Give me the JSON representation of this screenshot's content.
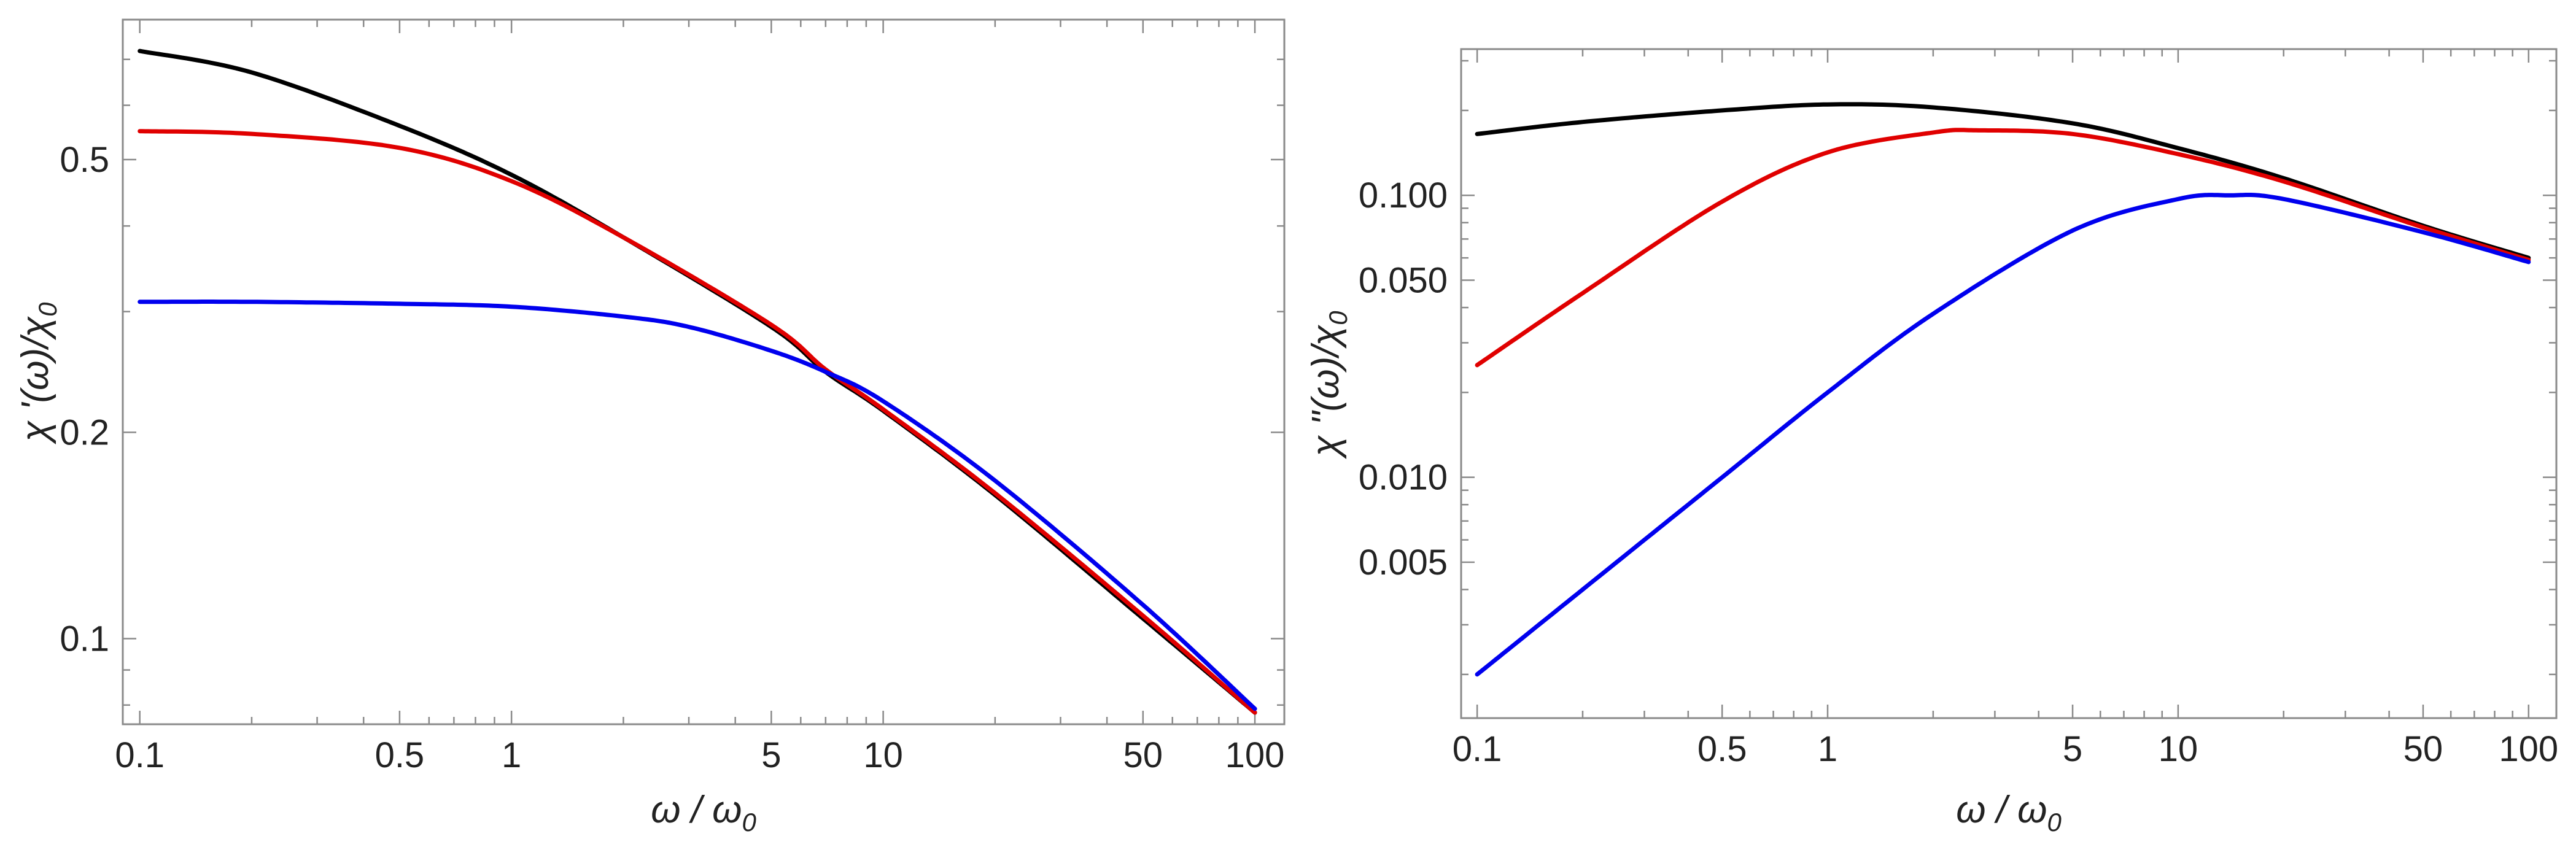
{
  "figure_title": "",
  "chart_data": [
    {
      "type": "line",
      "xscale": "log",
      "yscale": "log",
      "xlabel": {
        "main": "ω / ω",
        "sub": "0"
      },
      "ylabel": {
        "main": "χ '(ω)/χ",
        "sub": "0"
      },
      "xlim": [
        0.09,
        120
      ],
      "ylim": [
        0.075,
        0.8
      ],
      "xticks": [
        0.1,
        0.5,
        1,
        5,
        10,
        50,
        100
      ],
      "xtick_labels": [
        "0.1",
        "0.5",
        "1",
        "5",
        "10",
        "50",
        "100"
      ],
      "yticks": [
        0.1,
        0.2,
        0.5
      ],
      "ytick_labels": [
        "0.1",
        "0.2",
        "0.5"
      ],
      "grid": false,
      "legend": "none",
      "series": [
        {
          "name": "black",
          "color": "#000000",
          "x": [
            0.1,
            0.2,
            0.5,
            1,
            2,
            5,
            7,
            10,
            20,
            50,
            100
          ],
          "y": [
            0.72,
            0.67,
            0.56,
            0.475,
            0.385,
            0.285,
            0.245,
            0.215,
            0.162,
            0.107,
            0.078
          ]
        },
        {
          "name": "red",
          "color": "#e00000",
          "x": [
            0.1,
            0.2,
            0.5,
            1,
            2,
            5,
            7,
            10,
            20,
            50,
            100
          ],
          "y": [
            0.55,
            0.545,
            0.52,
            0.465,
            0.385,
            0.287,
            0.247,
            0.216,
            0.163,
            0.108,
            0.078
          ]
        },
        {
          "name": "blue",
          "color": "#0000ee",
          "x": [
            0.1,
            0.2,
            0.5,
            1,
            2,
            3,
            5,
            7,
            10,
            20,
            50,
            100
          ],
          "y": [
            0.31,
            0.31,
            0.308,
            0.305,
            0.295,
            0.285,
            0.263,
            0.245,
            0.222,
            0.17,
            0.112,
            0.079
          ]
        }
      ]
    },
    {
      "type": "line",
      "xscale": "log",
      "yscale": "log",
      "xlabel": {
        "main": "ω / ω",
        "sub": "0"
      },
      "ylabel": {
        "main": "χ \"(ω)/χ",
        "sub": "0"
      },
      "xlim": [
        0.09,
        120
      ],
      "ylim": [
        0.0014,
        0.33
      ],
      "xticks": [
        0.1,
        0.5,
        1,
        5,
        10,
        50,
        100
      ],
      "xtick_labels": [
        "0.1",
        "0.5",
        "1",
        "5",
        "10",
        "50",
        "100"
      ],
      "yticks": [
        0.005,
        0.01,
        0.05,
        0.1
      ],
      "ytick_labels": [
        "0.005",
        "0.010",
        "0.050",
        "0.100"
      ],
      "grid": false,
      "legend": "none",
      "series": [
        {
          "name": "black",
          "color": "#000000",
          "x": [
            0.1,
            0.2,
            0.5,
            1,
            2,
            5,
            10,
            20,
            50,
            100
          ],
          "y": [
            0.165,
            0.182,
            0.2,
            0.21,
            0.205,
            0.18,
            0.147,
            0.115,
            0.078,
            0.06
          ]
        },
        {
          "name": "red",
          "color": "#e00000",
          "x": [
            0.1,
            0.2,
            0.5,
            1,
            2,
            2.7,
            5,
            10,
            20,
            50,
            100
          ],
          "y": [
            0.025,
            0.045,
            0.095,
            0.142,
            0.167,
            0.17,
            0.165,
            0.14,
            0.112,
            0.077,
            0.059
          ]
        },
        {
          "name": "blue",
          "color": "#0000ee",
          "x": [
            0.1,
            0.2,
            0.5,
            1,
            2,
            5,
            10,
            14,
            20,
            50,
            100
          ],
          "y": [
            0.002,
            0.004,
            0.01,
            0.02,
            0.038,
            0.075,
            0.097,
            0.1,
            0.097,
            0.074,
            0.058
          ]
        }
      ]
    }
  ]
}
